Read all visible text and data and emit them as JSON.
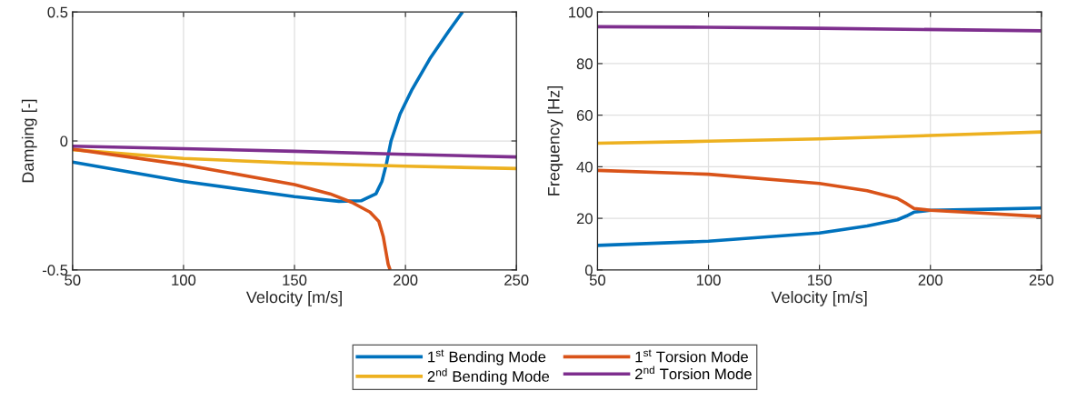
{
  "chart_data": [
    {
      "type": "line",
      "xlabel": "Velocity [m/s]",
      "ylabel": "Damping [-]",
      "xlim": [
        50,
        250
      ],
      "xticks": [
        50,
        100,
        150,
        200,
        250
      ],
      "ylim": [
        -0.5,
        0.5
      ],
      "yticks": [
        -0.5,
        0,
        0.5
      ],
      "grid": true,
      "legend": "bottom",
      "line_style": "solid",
      "series": [
        {
          "name": "1$^{st}$ Bending Mode",
          "color": "#0072bd",
          "x": [
            50,
            100,
            150,
            170,
            180,
            186.7,
            189.4,
            191.5,
            193.5,
            197.6,
            203,
            211,
            219.5,
            225.7
          ],
          "values": [
            -0.082,
            -0.157,
            -0.216,
            -0.234,
            -0.232,
            -0.205,
            -0.157,
            -0.086,
            0.0,
            0.105,
            0.2,
            0.319,
            0.426,
            0.5
          ]
        },
        {
          "name": "2$^{nd}$ Bending Mode",
          "color": "#edb120",
          "x": [
            50,
            100,
            150,
            200,
            250
          ],
          "values": [
            -0.034,
            -0.068,
            -0.086,
            -0.098,
            -0.107
          ]
        },
        {
          "name": "1$^{st}$ Torsion Mode",
          "color": "#d95319",
          "x": [
            50,
            100,
            150,
            166,
            175.8,
            184,
            188,
            190,
            192.2,
            193.1
          ],
          "values": [
            -0.032,
            -0.092,
            -0.169,
            -0.205,
            -0.238,
            -0.276,
            -0.312,
            -0.371,
            -0.478,
            -0.5
          ]
        },
        {
          "name": "2$^{nd}$ Torsion Mode",
          "color": "#7e2f8e",
          "x": [
            50,
            100,
            150,
            200,
            250
          ],
          "values": [
            -0.02,
            -0.03,
            -0.04,
            -0.052,
            -0.062
          ]
        }
      ]
    },
    {
      "type": "line",
      "xlabel": "Velocity [m/s]",
      "ylabel": "Frequency [Hz]",
      "xlim": [
        50,
        250
      ],
      "xticks": [
        50,
        100,
        150,
        200,
        250
      ],
      "ylim": [
        0,
        100
      ],
      "yticks": [
        0,
        20,
        40,
        60,
        80,
        100
      ],
      "grid": true,
      "line_style": "solid",
      "series": [
        {
          "color": "#0072bd",
          "x": [
            50,
            100,
            150,
            171.5,
            185.1,
            189.2,
            192.6,
            200,
            226,
            250
          ],
          "values": [
            9.5,
            11.1,
            14.3,
            17.0,
            19.4,
            20.9,
            22.4,
            23.1,
            23.5,
            24.0
          ]
        },
        {
          "color": "#edb120",
          "x": [
            50,
            100,
            150,
            200,
            250
          ],
          "values": [
            49.1,
            49.9,
            50.8,
            52.1,
            53.5
          ]
        },
        {
          "color": "#d95319",
          "x": [
            50,
            100,
            150,
            171.5,
            185.1,
            189.2,
            192.6,
            200,
            226,
            250
          ],
          "values": [
            38.6,
            37.1,
            33.5,
            30.7,
            27.7,
            25.7,
            23.8,
            23.1,
            21.9,
            20.7
          ]
        },
        {
          "color": "#7e2f8e",
          "x": [
            50,
            100,
            150,
            250
          ],
          "values": [
            94.3,
            94.1,
            93.7,
            92.7
          ]
        }
      ]
    }
  ]
}
